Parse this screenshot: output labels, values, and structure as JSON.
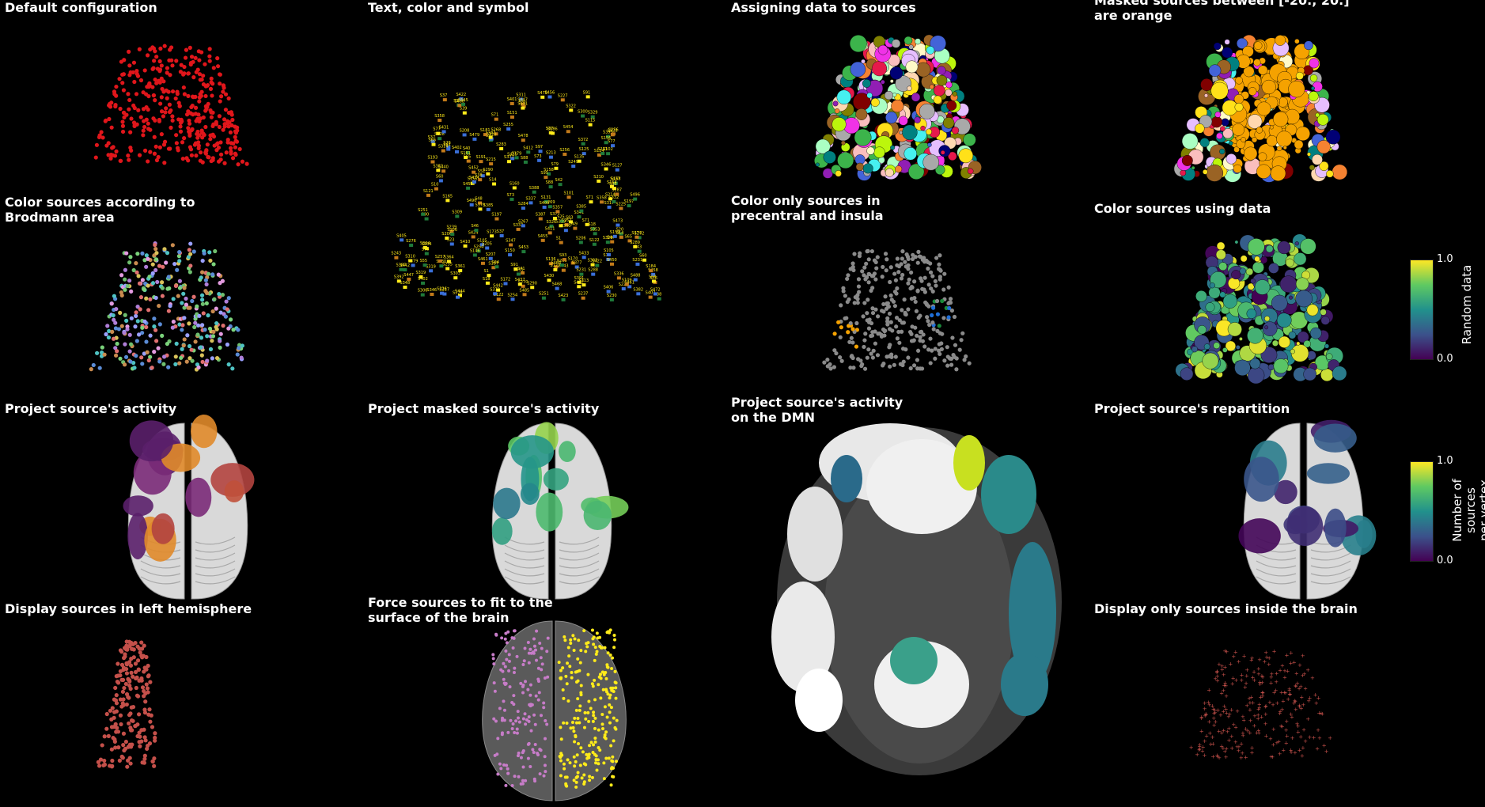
{
  "panels": [
    {
      "id": "p1",
      "title": "Default configuration"
    },
    {
      "id": "p2",
      "title": "Text, color and symbol"
    },
    {
      "id": "p3",
      "title": "Assigning data to sources"
    },
    {
      "id": "p4",
      "title": "Masked sources between [-20., 20.]\nare orange"
    },
    {
      "id": "p5",
      "title": "Color sources according to\n Brodmann area"
    },
    {
      "id": "p6",
      "title": "Color only sources in\n precentral and insula"
    },
    {
      "id": "p7",
      "title": "Color sources using data"
    },
    {
      "id": "p8",
      "title": "Project source's activity"
    },
    {
      "id": "p9",
      "title": "Project masked source's activity"
    },
    {
      "id": "p10",
      "title": "Project source's activity\non the DMN"
    },
    {
      "id": "p11",
      "title": "Project source's repartition"
    },
    {
      "id": "p12",
      "title": "Display sources in left hemisphere"
    },
    {
      "id": "p13",
      "title": "Force sources to fit to the\nsurface of the brain"
    },
    {
      "id": "p14",
      "title": "Display only sources inside the brain"
    }
  ],
  "colorbars": [
    {
      "label": "Random data",
      "max": "1.0",
      "min": "0.0",
      "colormap": "viridis"
    },
    {
      "label": "Number of sources\nper vertex",
      "max": "1.0",
      "min": "0.0",
      "colormap": "viridis"
    }
  ],
  "colors": {
    "background": "#000000",
    "default_source": "#e0161b",
    "masked": "#f5a200",
    "grey_source": "#8a8a8a",
    "left_hemi_source": "#c4504a",
    "brain_surface": "#d9d9d9",
    "text_yellow": "#ffeb1a"
  }
}
